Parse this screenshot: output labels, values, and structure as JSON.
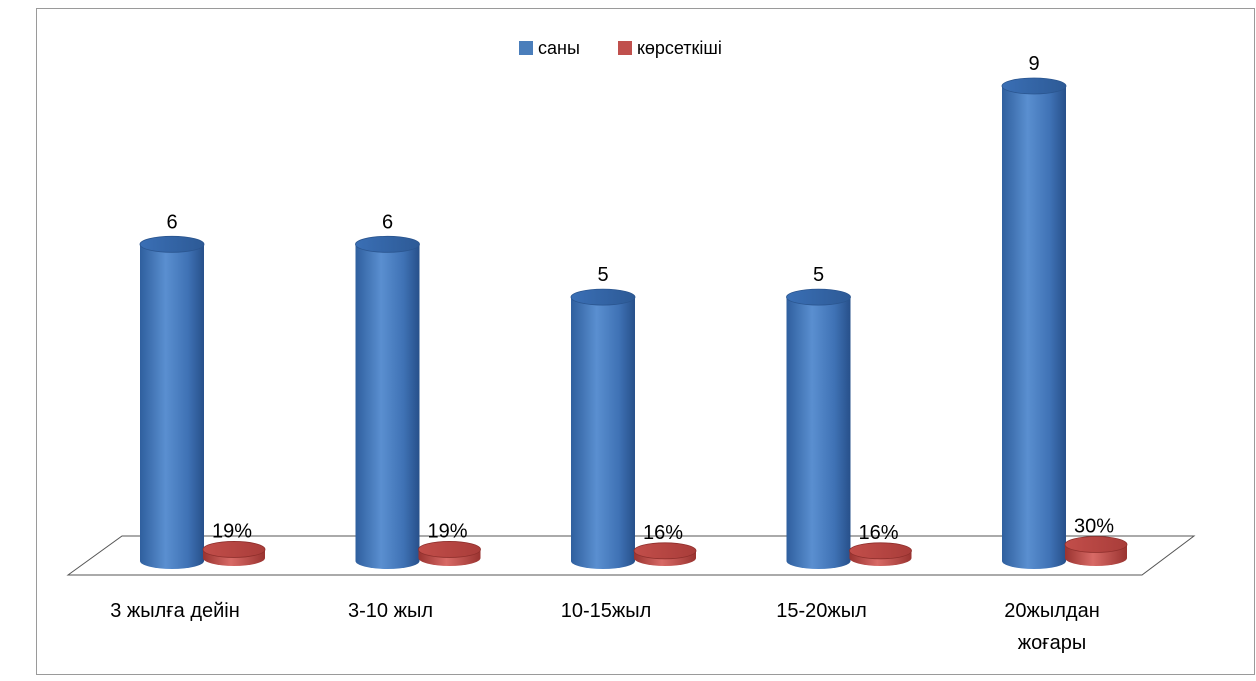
{
  "chart_data": {
    "type": "bar",
    "categories": [
      "3 жылға дейін",
      "3-10 жыл",
      "10-15жыл",
      "15-20жыл",
      "20жылдан жоғары"
    ],
    "series": [
      {
        "name": "саны",
        "values": [
          6,
          6,
          5,
          5,
          9
        ],
        "labels": [
          "6",
          "6",
          "5",
          "5",
          "9"
        ],
        "color": "#4a7ebb"
      },
      {
        "name": "көрсеткіші",
        "values": [
          0.19,
          0.19,
          0.16,
          0.16,
          0.3
        ],
        "labels": [
          "19%",
          "19%",
          "16%",
          "16%",
          "30%"
        ],
        "color": "#c0504d"
      }
    ],
    "legend": {
      "position": "top"
    },
    "grid": false,
    "style": "3d-cylinder"
  }
}
